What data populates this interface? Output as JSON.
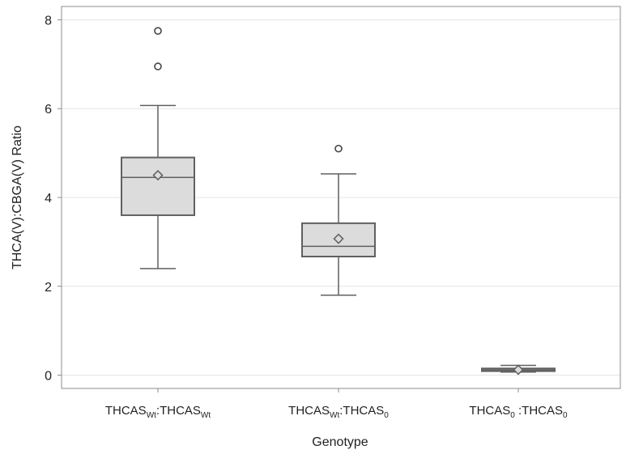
{
  "chart_data": {
    "type": "boxplot",
    "title": "",
    "xlabel": "Genotype",
    "ylabel": "THCA(V):CBGA(V) Ratio",
    "ylim": [
      -0.3,
      8.3
    ],
    "yticks": [
      0,
      2,
      4,
      6,
      8
    ],
    "grid": true,
    "categories": [
      {
        "parts": [
          [
            "THCAS",
            ""
          ],
          [
            "Wt",
            "sub"
          ],
          [
            ":THCAS",
            ""
          ],
          [
            "Wt",
            "sub"
          ]
        ]
      },
      {
        "parts": [
          [
            "THCAS",
            ""
          ],
          [
            "Wt",
            "sub"
          ],
          [
            ":THCAS",
            ""
          ],
          [
            "0",
            "sub"
          ]
        ]
      },
      {
        "parts": [
          [
            "THCAS",
            ""
          ],
          [
            "0",
            "sub"
          ],
          [
            " :THCAS",
            ""
          ],
          [
            "0",
            "sub"
          ]
        ]
      }
    ],
    "boxes": [
      {
        "whisker_low": 2.4,
        "q1": 3.6,
        "median": 4.45,
        "q3": 4.9,
        "whisker_high": 6.07,
        "mean": 4.5,
        "outliers": [
          6.95,
          7.75
        ]
      },
      {
        "whisker_low": 1.8,
        "q1": 2.67,
        "median": 2.9,
        "q3": 3.42,
        "whisker_high": 4.53,
        "mean": 3.07,
        "outliers": [
          5.1
        ]
      },
      {
        "whisker_low": 0.07,
        "q1": 0.09,
        "median": 0.12,
        "q3": 0.15,
        "whisker_high": 0.22,
        "mean": 0.12,
        "outliers": []
      }
    ],
    "colors": {
      "box_fill": "#dcdcdc",
      "box_stroke": "#606060",
      "grid": "#e4e4e4",
      "axis": "#8c8c8c",
      "text": "#222222"
    }
  }
}
